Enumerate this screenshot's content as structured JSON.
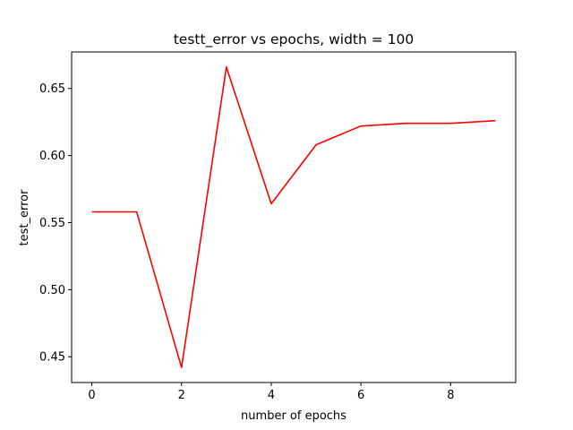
{
  "chart_data": {
    "type": "line",
    "title": "testt_error vs epochs, width = 100",
    "xlabel": "number of epochs",
    "ylabel": "test_error",
    "x": [
      0,
      1,
      2,
      3,
      4,
      5,
      6,
      7,
      8,
      9
    ],
    "series": [
      {
        "values": [
          0.558,
          0.558,
          0.442,
          0.666,
          0.564,
          0.608,
          0.622,
          0.624,
          0.624,
          0.626
        ],
        "color": "#ff0000"
      }
    ],
    "xlim": [
      -0.45,
      9.45
    ],
    "ylim": [
      0.4308,
      0.6772
    ],
    "xticks": [
      0,
      2,
      4,
      6,
      8
    ],
    "xtick_labels": [
      "0",
      "2",
      "4",
      "6",
      "8"
    ],
    "yticks": [
      0.45,
      0.5,
      0.55,
      0.6,
      0.65
    ],
    "ytick_labels": [
      "0.45",
      "0.50",
      "0.55",
      "0.60",
      "0.65"
    ],
    "grid": false,
    "legend": "none"
  }
}
